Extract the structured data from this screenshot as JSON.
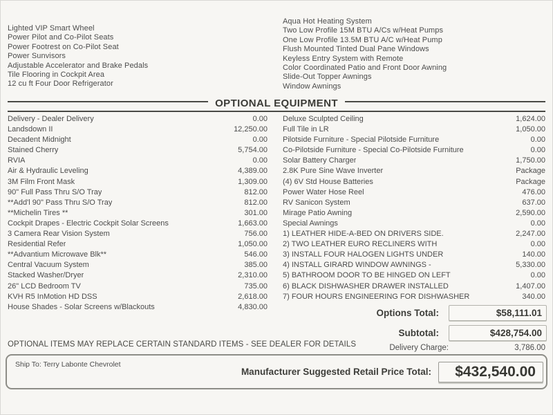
{
  "colors": {
    "page_bg": "#f7f6f3",
    "text": "#4c4c4c",
    "rule": "#4a4a46",
    "box_border": "#8d8d87"
  },
  "standard_equipment": {
    "left": [
      "Lighted VIP Smart Wheel",
      "Power Pilot and Co-Pilot Seats",
      "Power Footrest on Co-Pilot Seat",
      "Power Sunvisors",
      "Adjustable Accelerator and Brake Pedals",
      "Tile Flooring in Cockpit Area",
      "12 cu ft Four Door Refrigerator"
    ],
    "right": [
      "Aqua Hot Heating System",
      "Two Low Profile 15M BTU A/Cs w/Heat Pumps",
      "One Low Profile 13.5M BTU A/C w/Heat Pump",
      "Flush Mounted Tinted Dual Pane Windows",
      "Keyless Entry System with Remote",
      "Color Coordinated Patio and Front Door Awning",
      "Slide-Out Topper Awnings",
      "Window Awnings"
    ]
  },
  "optional_equipment": {
    "title": "OPTIONAL EQUIPMENT",
    "left": [
      {
        "label": "Delivery - Dealer Delivery",
        "price": "0.00"
      },
      {
        "label": "Landsdown II",
        "price": "12,250.00"
      },
      {
        "label": "Decadent Midnight",
        "price": "0.00"
      },
      {
        "label": "Stained Cherry",
        "price": "5,754.00"
      },
      {
        "label": "RVIA",
        "price": "0.00"
      },
      {
        "label": "Air & Hydraulic Leveling",
        "price": "4,389.00"
      },
      {
        "label": "3M Film Front Mask",
        "price": "1,309.00"
      },
      {
        "label": "90\" Full Pass Thru S/O Tray",
        "price": "812.00"
      },
      {
        "label": "**Add'l 90\" Pass Thru S/O Tray",
        "price": "812.00"
      },
      {
        "label": "**Michelin Tires **",
        "price": "301.00"
      },
      {
        "label": "Cockpit Drapes - Electric Cockpit Solar Screens",
        "price": "1,663.00"
      },
      {
        "label": "3 Camera Rear Vision System",
        "price": "756.00"
      },
      {
        "label": "Residential Refer",
        "price": "1,050.00"
      },
      {
        "label": "**Advantium Microwave Blk**",
        "price": "546.00"
      },
      {
        "label": "Central Vacuum System",
        "price": "385.00"
      },
      {
        "label": "Stacked Washer/Dryer",
        "price": "2,310.00"
      },
      {
        "label": "26\" LCD  Bedroom TV",
        "price": "735.00"
      },
      {
        "label": "KVH R5 InMotion HD DSS",
        "price": "2,618.00"
      },
      {
        "label": "House Shades - Solar Screens w/Blackouts",
        "price": "4,830.00"
      }
    ],
    "right": [
      {
        "label": "Deluxe Sculpted Ceiling",
        "price": "1,624.00"
      },
      {
        "label": "Full Tile in LR",
        "price": "1,050.00"
      },
      {
        "label": "Pilotside Furniture - Special Pilotside Furniture",
        "price": "0.00"
      },
      {
        "label": "Co-Pilotside Furniture - Special Co-Pilotside Furniture",
        "price": "0.00"
      },
      {
        "label": "Solar Battery Charger",
        "price": "1,750.00"
      },
      {
        "label": "2.8K Pure Sine Wave Inverter",
        "price": "Package"
      },
      {
        "label": "(4) 6V Std House  Batteries",
        "price": "Package"
      },
      {
        "label": "Power Water Hose Reel",
        "price": "476.00"
      },
      {
        "label": "RV Sanicon System",
        "price": "637.00"
      },
      {
        "label": "Mirage Patio Awning",
        "price": "2,590.00"
      },
      {
        "label": "Special Awnings",
        "price": "0.00"
      },
      {
        "label": "1) LEATHER HIDE-A-BED ON DRIVERS SIDE.",
        "price": "2,247.00"
      },
      {
        "label": "2) TWO LEATHER EURO RECLINERS WITH",
        "price": "0.00"
      },
      {
        "label": "3) INSTALL FOUR HALOGEN LIGHTS UNDER",
        "price": "140.00"
      },
      {
        "label": "4) INSTALL GIRARD WINDOW AWNINGS -",
        "price": "5,330.00"
      },
      {
        "label": "5) BATHROOM DOOR TO BE HINGED ON LEFT",
        "price": "0.00"
      },
      {
        "label": "6) BLACK DISHWASHER DRAWER INSTALLED",
        "price": "1,407.00"
      },
      {
        "label": "7) FOUR HOURS ENGINEERING FOR DISHWASHER",
        "price": "340.00"
      }
    ]
  },
  "totals": {
    "options_total_label": "Options Total:",
    "options_total_value": "$58,111.01",
    "subtotal_label": "Subtotal:",
    "subtotal_value": "$428,754.00",
    "delivery_charge_label": "Delivery Charge:",
    "delivery_charge_value": "3,786.00"
  },
  "disclaimer": "OPTIONAL ITEMS MAY REPLACE CERTAIN STANDARD ITEMS - SEE DEALER FOR DETAILS",
  "footer": {
    "ship_to_label": "Ship To:",
    "ship_to_value": "Terry Labonte Chevrolet",
    "msrp_label": "Manufacturer Suggested Retail Price Total:",
    "msrp_value": "$432,540.00"
  }
}
